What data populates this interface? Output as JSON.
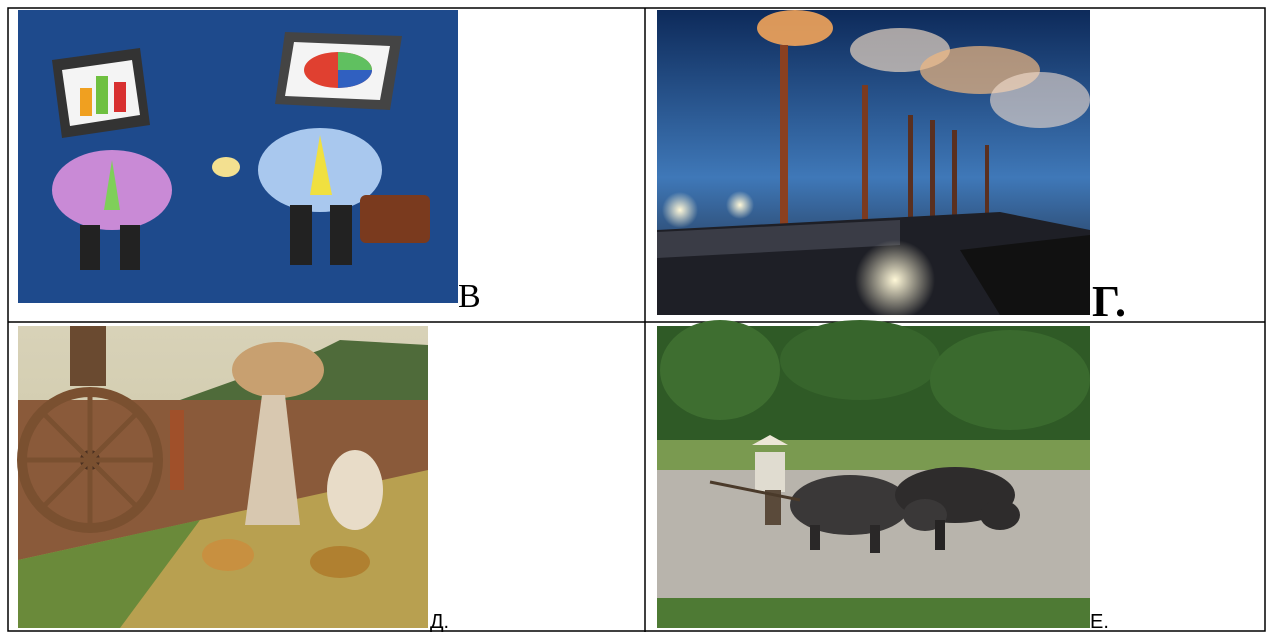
{
  "table": {
    "rows": [
      [
        {
          "label": "В"
        },
        {
          "label": "Г."
        }
      ],
      [
        {
          "label": "Д."
        },
        {
          "label": "Е."
        }
      ]
    ]
  }
}
